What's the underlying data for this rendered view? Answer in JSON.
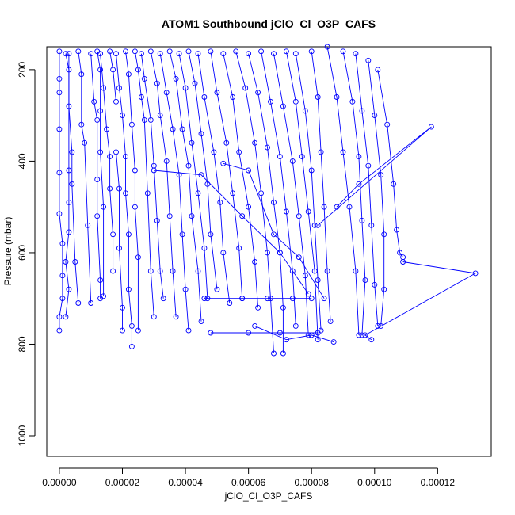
{
  "chart_data": {
    "type": "line",
    "title": "ATOM1 Southbound jClO_Cl_O3P_CAFS",
    "xlabel": "jClO_Cl_O3P_CAFS",
    "ylabel": "Pressure (mbar)",
    "xlim": [
      -4e-06,
      0.000137
    ],
    "ylim": [
      1045,
      150
    ],
    "y_reversed": true,
    "x_ticks": [
      0,
      2e-05,
      4e-05,
      6e-05,
      8e-05,
      0.0001,
      0.00012
    ],
    "x_tick_labels": [
      "0.00000",
      "0.00002",
      "0.00004",
      "0.00006",
      "0.00008",
      "0.00010",
      "0.00012"
    ],
    "y_ticks": [
      200,
      400,
      600,
      800,
      1000
    ],
    "y_tick_labels": [
      "200",
      "400",
      "600",
      "800",
      "1000"
    ],
    "grid": false,
    "legend": "none",
    "series_color": "#0000ff",
    "marker": "open-circle",
    "series": [
      {
        "x": [
          0,
          0,
          0,
          0,
          0,
          0,
          1e-06,
          1e-06,
          1e-06,
          0,
          0
        ],
        "y": [
          160,
          220,
          250,
          330,
          425,
          515,
          580,
          650,
          700,
          740,
          770
        ]
      },
      {
        "x": [
          2e-06,
          3e-06,
          3e-06,
          3e-06,
          3e-06,
          2e-06,
          3e-06,
          2e-06
        ],
        "y": [
          165,
          200,
          420,
          490,
          555,
          620,
          680,
          740
        ]
      },
      {
        "x": [
          3e-06,
          3e-06,
          4e-06,
          4e-06,
          5e-06,
          6e-06
        ],
        "y": [
          165,
          280,
          380,
          450,
          620,
          710
        ]
      },
      {
        "x": [
          6e-06,
          7e-06,
          7e-06,
          8e-06,
          9e-06,
          1e-05
        ],
        "y": [
          160,
          210,
          320,
          360,
          540,
          710
        ]
      },
      {
        "x": [
          1e-05,
          1.1e-05,
          1.2e-05,
          1.2e-05,
          1.2e-05,
          1.3e-05,
          1.3e-05
        ],
        "y": [
          165,
          270,
          310,
          440,
          520,
          660,
          700
        ]
      },
      {
        "x": [
          1.2e-05,
          1.3e-05,
          1.3e-05,
          1.3e-05,
          1.4e-05,
          1.4e-05
        ],
        "y": [
          160,
          200,
          290,
          380,
          500,
          695
        ]
      },
      {
        "x": [
          1.3e-05,
          1.4e-05,
          1.5e-05,
          1.6e-05,
          1.6e-05,
          1.7e-05,
          1.7e-05
        ],
        "y": [
          165,
          240,
          330,
          390,
          460,
          560,
          640
        ]
      },
      {
        "x": [
          1.6e-05,
          1.7e-05,
          1.8e-05,
          1.8e-05,
          1.9e-05,
          1.9e-05,
          2e-05,
          2e-05
        ],
        "y": [
          160,
          200,
          270,
          380,
          460,
          590,
          720,
          770
        ]
      },
      {
        "x": [
          1.8e-05,
          1.9e-05,
          2e-05,
          2.1e-05,
          2.1e-05,
          2.2e-05,
          2.2e-05,
          2.3e-05,
          2.3e-05
        ],
        "y": [
          165,
          240,
          300,
          390,
          470,
          560,
          680,
          760,
          805
        ]
      },
      {
        "x": [
          2.1e-05,
          2.2e-05,
          2.3e-05,
          2.4e-05,
          2.4e-05,
          2.5e-05,
          2.5e-05
        ],
        "y": [
          160,
          210,
          320,
          420,
          500,
          610,
          770
        ]
      },
      {
        "x": [
          2.4e-05,
          2.5e-05,
          2.6e-05,
          2.7e-05,
          2.8e-05,
          2.9e-05,
          3e-05
        ],
        "y": [
          160,
          200,
          260,
          310,
          470,
          640,
          740
        ]
      },
      {
        "x": [
          2.6e-05,
          2.7e-05,
          2.9e-05,
          3e-05,
          3.1e-05,
          3.2e-05,
          3.3e-05
        ],
        "y": [
          165,
          220,
          310,
          410,
          530,
          640,
          700
        ]
      },
      {
        "x": [
          2.9e-05,
          3.1e-05,
          3.2e-05,
          3.4e-05,
          3.5e-05,
          3.6e-05,
          3.7e-05
        ],
        "y": [
          160,
          230,
          300,
          400,
          520,
          640,
          740
        ]
      },
      {
        "x": [
          3.2e-05,
          3.4e-05,
          3.6e-05,
          3.8e-05,
          3.9e-05,
          4e-05,
          4.1e-05
        ],
        "y": [
          165,
          250,
          330,
          430,
          560,
          680,
          770
        ]
      },
      {
        "x": [
          3.5e-05,
          3.7e-05,
          3.9e-05,
          4.1e-05,
          4.2e-05,
          4.4e-05,
          4.5e-05
        ],
        "y": [
          160,
          220,
          330,
          410,
          520,
          640,
          750
        ]
      },
      {
        "x": [
          3.8e-05,
          4e-05,
          4.2e-05,
          4.4e-05,
          4.6e-05,
          4.7e-05
        ],
        "y": [
          165,
          240,
          360,
          470,
          590,
          700
        ]
      },
      {
        "x": [
          4.1e-05,
          4.3e-05,
          4.5e-05,
          4.7e-05,
          4.8e-05,
          5e-05
        ],
        "y": [
          160,
          230,
          340,
          450,
          560,
          680
        ]
      },
      {
        "x": [
          4.4e-05,
          4.6e-05,
          4.9e-05,
          5.1e-05,
          5.2e-05,
          5.4e-05
        ],
        "y": [
          165,
          260,
          380,
          490,
          600,
          710
        ]
      },
      {
        "x": [
          4.8e-05,
          5e-05,
          5.3e-05,
          5.5e-05,
          5.7e-05,
          5.8e-05
        ],
        "y": [
          160,
          250,
          360,
          470,
          590,
          700
        ]
      },
      {
        "x": [
          5.2e-05,
          5.5e-05,
          5.7e-05,
          6e-05,
          6.2e-05,
          6.3e-05
        ],
        "y": [
          165,
          260,
          380,
          500,
          620,
          720
        ]
      },
      {
        "x": [
          5.6e-05,
          5.9e-05,
          6.2e-05,
          6.4e-05,
          6.6e-05,
          6.7e-05,
          6.8e-05
        ],
        "y": [
          160,
          240,
          360,
          470,
          600,
          700,
          820
        ]
      },
      {
        "x": [
          6e-05,
          6.3e-05,
          6.6e-05,
          6.8e-05,
          7e-05,
          7.1e-05,
          7.1e-05
        ],
        "y": [
          165,
          250,
          370,
          490,
          600,
          720,
          820
        ]
      },
      {
        "x": [
          6.4e-05,
          6.7e-05,
          7e-05,
          7.2e-05,
          7.4e-05,
          7.5e-05
        ],
        "y": [
          160,
          270,
          390,
          510,
          640,
          760
        ]
      },
      {
        "x": [
          6.8e-05,
          7.1e-05,
          7.4e-05,
          7.6e-05,
          7.8e-05,
          7.9e-05
        ],
        "y": [
          165,
          280,
          400,
          520,
          650,
          780
        ]
      },
      {
        "x": [
          7.2e-05,
          7.5e-05,
          7.7e-05,
          7.9e-05,
          8.1e-05,
          8.2e-05
        ],
        "y": [
          160,
          270,
          390,
          510,
          640,
          790
        ]
      },
      {
        "x": [
          7.5e-05,
          7.8e-05,
          8e-05,
          8.1e-05,
          8.2e-05,
          8.3e-05
        ],
        "y": [
          165,
          290,
          420,
          540,
          660,
          770
        ]
      },
      {
        "x": [
          8e-05,
          8.2e-05,
          8.3e-05,
          8.4e-05,
          8.5e-05,
          8.6e-05
        ],
        "y": [
          160,
          260,
          380,
          500,
          640,
          750
        ]
      },
      {
        "x": [
          8.5e-05,
          8.8e-05,
          9e-05,
          9.2e-05,
          9.4e-05,
          9.5e-05
        ],
        "y": [
          150,
          260,
          380,
          500,
          640,
          780
        ]
      },
      {
        "x": [
          9e-05,
          9.3e-05,
          9.5e-05,
          9.6e-05,
          9.7e-05,
          9.6e-05
        ],
        "y": [
          160,
          270,
          390,
          530,
          660,
          780
        ]
      },
      {
        "x": [
          9.4e-05,
          9.6e-05,
          9.8e-05,
          9.9e-05,
          0.0001,
          0.000101
        ],
        "y": [
          165,
          290,
          410,
          540,
          670,
          760
        ]
      },
      {
        "x": [
          9.8e-05,
          0.0001,
          0.000102,
          0.000103,
          0.000103,
          0.000102
        ],
        "y": [
          180,
          300,
          430,
          560,
          680,
          760
        ]
      },
      {
        "x": [
          0.000101,
          0.000104,
          0.000106,
          0.000107,
          0.000108,
          0.000109
        ],
        "y": [
          200,
          320,
          450,
          550,
          600,
          610
        ]
      },
      {
        "x": [
          8.2e-05,
          0.000118,
          9.5e-05,
          8.8e-05
        ],
        "y": [
          540,
          325,
          450,
          500
        ]
      },
      {
        "x": [
          0.000109,
          0.000132,
          9.7e-05,
          9.9e-05
        ],
        "y": [
          620,
          645,
          780,
          790
        ]
      },
      {
        "x": [
          5.2e-05,
          6e-05,
          6.8e-05,
          7.6e-05,
          8.4e-05
        ],
        "y": [
          405,
          420,
          560,
          610,
          700
        ]
      },
      {
        "x": [
          3e-05,
          4.5e-05,
          5.8e-05,
          7e-05,
          7.9e-05
        ],
        "y": [
          420,
          430,
          520,
          600,
          690
        ]
      },
      {
        "x": [
          4.6e-05,
          5.8e-05,
          6.6e-05,
          7.4e-05,
          8e-05
        ],
        "y": [
          700,
          700,
          700,
          700,
          700
        ]
      },
      {
        "x": [
          4.8e-05,
          6e-05,
          7e-05,
          8.2e-05
        ],
        "y": [
          775,
          775,
          775,
          775
        ]
      },
      {
        "x": [
          6.2e-05,
          7.2e-05,
          8e-05,
          8.7e-05
        ],
        "y": [
          760,
          790,
          780,
          795
        ]
      }
    ]
  }
}
